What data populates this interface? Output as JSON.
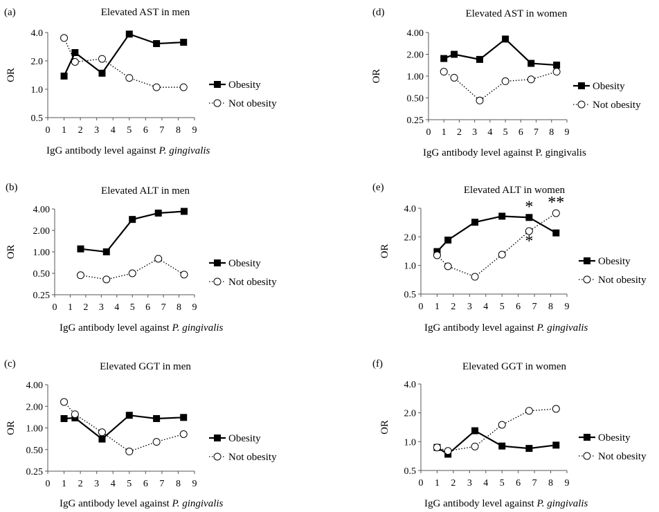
{
  "chart_data": [
    {
      "type": "line",
      "panel_label": "(a)",
      "title": "Elevated AST in men",
      "ylabel": "OR",
      "xlabel": "IgG antibody level against",
      "xlabel_italic": "P. gingivalis",
      "xlim": [
        0,
        9
      ],
      "x_ticks": [
        "0",
        "1",
        "2",
        "3",
        "4",
        "5",
        "6",
        "7",
        "8",
        "9"
      ],
      "y_scale": "log",
      "y_ticks": [
        0.5,
        1,
        2,
        4
      ],
      "y_tick_labels": [
        "0.5",
        "1.0",
        "2.0",
        "4.0"
      ],
      "grid": false,
      "legend_position": "right",
      "series": [
        {
          "name": "Obesity",
          "style": "solid-square",
          "x": [
            1,
            1.67,
            3.33,
            5,
            6.67,
            8.33
          ],
          "y": [
            1.38,
            2.45,
            1.48,
            3.85,
            3.05,
            3.15
          ]
        },
        {
          "name": "Not obesity",
          "style": "dotted-circle",
          "x": [
            1,
            1.67,
            3.33,
            5,
            6.67,
            8.33
          ],
          "y": [
            3.5,
            1.95,
            2.1,
            1.32,
            1.05,
            1.05
          ]
        }
      ],
      "annotations": []
    },
    {
      "type": "line",
      "panel_label": "(b)",
      "title": "Elevated ALT in men",
      "ylabel": "OR",
      "xlabel": "IgG antibody level against",
      "xlabel_italic": "P. gingivalis",
      "xlim": [
        0,
        9
      ],
      "x_ticks": [
        "0",
        "1",
        "2",
        "3",
        "4",
        "5",
        "6",
        "7",
        "8",
        "9"
      ],
      "y_scale": "log",
      "y_ticks": [
        0.25,
        0.5,
        1,
        2,
        4
      ],
      "y_tick_labels": [
        "0.25",
        "0.50",
        "1.00",
        "2.00",
        "4.00"
      ],
      "grid": false,
      "legend_position": "right",
      "series": [
        {
          "name": "Obesity",
          "style": "solid-square",
          "x": [
            1.67,
            3.33,
            5,
            6.67,
            8.33
          ],
          "y": [
            1.1,
            1.0,
            2.85,
            3.5,
            3.7
          ]
        },
        {
          "name": "Not obesity",
          "style": "dotted-circle",
          "x": [
            1.67,
            3.33,
            5,
            6.67,
            8.33
          ],
          "y": [
            0.47,
            0.41,
            0.5,
            0.8,
            0.48
          ]
        }
      ],
      "annotations": []
    },
    {
      "type": "line",
      "panel_label": "(c)",
      "title": "Elevated GGT in men",
      "ylabel": "OR",
      "xlabel": "IgG antibody level against",
      "xlabel_italic": "P. gingivalis",
      "xlim": [
        0,
        9
      ],
      "x_ticks": [
        "0",
        "1",
        "2",
        "3",
        "4",
        "5",
        "6",
        "7",
        "8",
        "9"
      ],
      "y_scale": "log",
      "y_ticks": [
        0.25,
        0.5,
        1,
        2,
        4
      ],
      "y_tick_labels": [
        "0.25",
        "0.50",
        "1.00",
        "2.00",
        "4.00"
      ],
      "grid": false,
      "legend_position": "right",
      "series": [
        {
          "name": "Obesity",
          "style": "solid-square",
          "x": [
            1,
            1.67,
            3.33,
            5,
            6.67,
            8.33
          ],
          "y": [
            1.35,
            1.38,
            0.7,
            1.5,
            1.35,
            1.4
          ]
        },
        {
          "name": "Not obesity",
          "style": "dotted-circle",
          "x": [
            1,
            1.67,
            3.33,
            5,
            6.67,
            8.33
          ],
          "y": [
            2.3,
            1.55,
            0.87,
            0.47,
            0.64,
            0.82
          ]
        }
      ],
      "annotations": []
    },
    {
      "type": "line",
      "panel_label": "(d)",
      "title": "Elevated AST in women",
      "ylabel": "OR",
      "xlabel": "IgG antibody level against P. gingivalis",
      "xlabel_italic": "",
      "xlim": [
        0,
        9
      ],
      "x_ticks": [
        "0",
        "1",
        "2",
        "3",
        "4",
        "5",
        "6",
        "7",
        "8",
        "9"
      ],
      "y_scale": "log",
      "y_ticks": [
        0.25,
        0.5,
        1,
        2,
        4
      ],
      "y_tick_labels": [
        "0.25",
        "0.50",
        "1.00",
        "2.00",
        "4.00"
      ],
      "grid": false,
      "legend_position": "right",
      "series": [
        {
          "name": "Obesity",
          "style": "solid-square",
          "x": [
            1,
            1.67,
            3.33,
            5,
            6.67,
            8.33
          ],
          "y": [
            1.75,
            2.0,
            1.7,
            3.25,
            1.5,
            1.42
          ]
        },
        {
          "name": "Not obesity",
          "style": "dotted-circle",
          "x": [
            1,
            1.67,
            3.33,
            5,
            6.67,
            8.33
          ],
          "y": [
            1.15,
            0.95,
            0.46,
            0.85,
            0.9,
            1.15
          ]
        }
      ],
      "annotations": []
    },
    {
      "type": "line",
      "panel_label": "(e)",
      "title": "Elevated ALT in women",
      "ylabel": "OR",
      "xlabel": "IgG antibody level against",
      "xlabel_italic": "P. gingivalis",
      "xlim": [
        0,
        9
      ],
      "x_ticks": [
        "0",
        "1",
        "2",
        "3",
        "4",
        "5",
        "6",
        "7",
        "8",
        "9"
      ],
      "y_scale": "log",
      "y_ticks": [
        0.5,
        1,
        2,
        4
      ],
      "y_tick_labels": [
        "0.5",
        "1.0",
        "2.0",
        "4.0"
      ],
      "grid": false,
      "legend_position": "right",
      "series": [
        {
          "name": "Obesity",
          "style": "solid-square",
          "x": [
            1,
            1.67,
            3.33,
            5,
            6.67,
            8.33
          ],
          "y": [
            1.4,
            1.85,
            2.85,
            3.3,
            3.2,
            2.2
          ]
        },
        {
          "name": "Not obesity",
          "style": "dotted-circle",
          "x": [
            1,
            1.67,
            3.33,
            5,
            6.67,
            8.33
          ],
          "y": [
            1.28,
            0.98,
            0.76,
            1.3,
            2.3,
            3.55
          ]
        }
      ],
      "annotations": [
        {
          "text": "*",
          "x": 6.67,
          "y": 3.2,
          "anchor": "above"
        },
        {
          "text": "*",
          "x": 6.67,
          "y": 2.3,
          "anchor": "below"
        },
        {
          "text": "**",
          "x": 8.33,
          "y": 3.55,
          "anchor": "above"
        }
      ]
    },
    {
      "type": "line",
      "panel_label": "(f)",
      "title": "Elevated GGT in women",
      "ylabel": "OR",
      "xlabel": "IgG antibody level against",
      "xlabel_italic": "P. gingivalis",
      "xlim": [
        0,
        9
      ],
      "x_ticks": [
        "0",
        "1",
        "2",
        "3",
        "4",
        "5",
        "6",
        "7",
        "8",
        "9"
      ],
      "y_scale": "log",
      "y_ticks": [
        0.5,
        1,
        2,
        4
      ],
      "y_tick_labels": [
        "0.5",
        "1.0",
        "2.0",
        "4.0"
      ],
      "grid": false,
      "legend_position": "right",
      "series": [
        {
          "name": "Obesity",
          "style": "solid-square",
          "x": [
            1,
            1.67,
            3.33,
            5,
            6.67,
            8.33
          ],
          "y": [
            0.87,
            0.74,
            1.3,
            0.9,
            0.85,
            0.92
          ]
        },
        {
          "name": "Not obesity",
          "style": "dotted-circle",
          "x": [
            1,
            1.67,
            3.33,
            5,
            6.67,
            8.33
          ],
          "y": [
            0.87,
            0.8,
            0.89,
            1.5,
            2.1,
            2.2
          ]
        }
      ],
      "annotations": []
    }
  ]
}
